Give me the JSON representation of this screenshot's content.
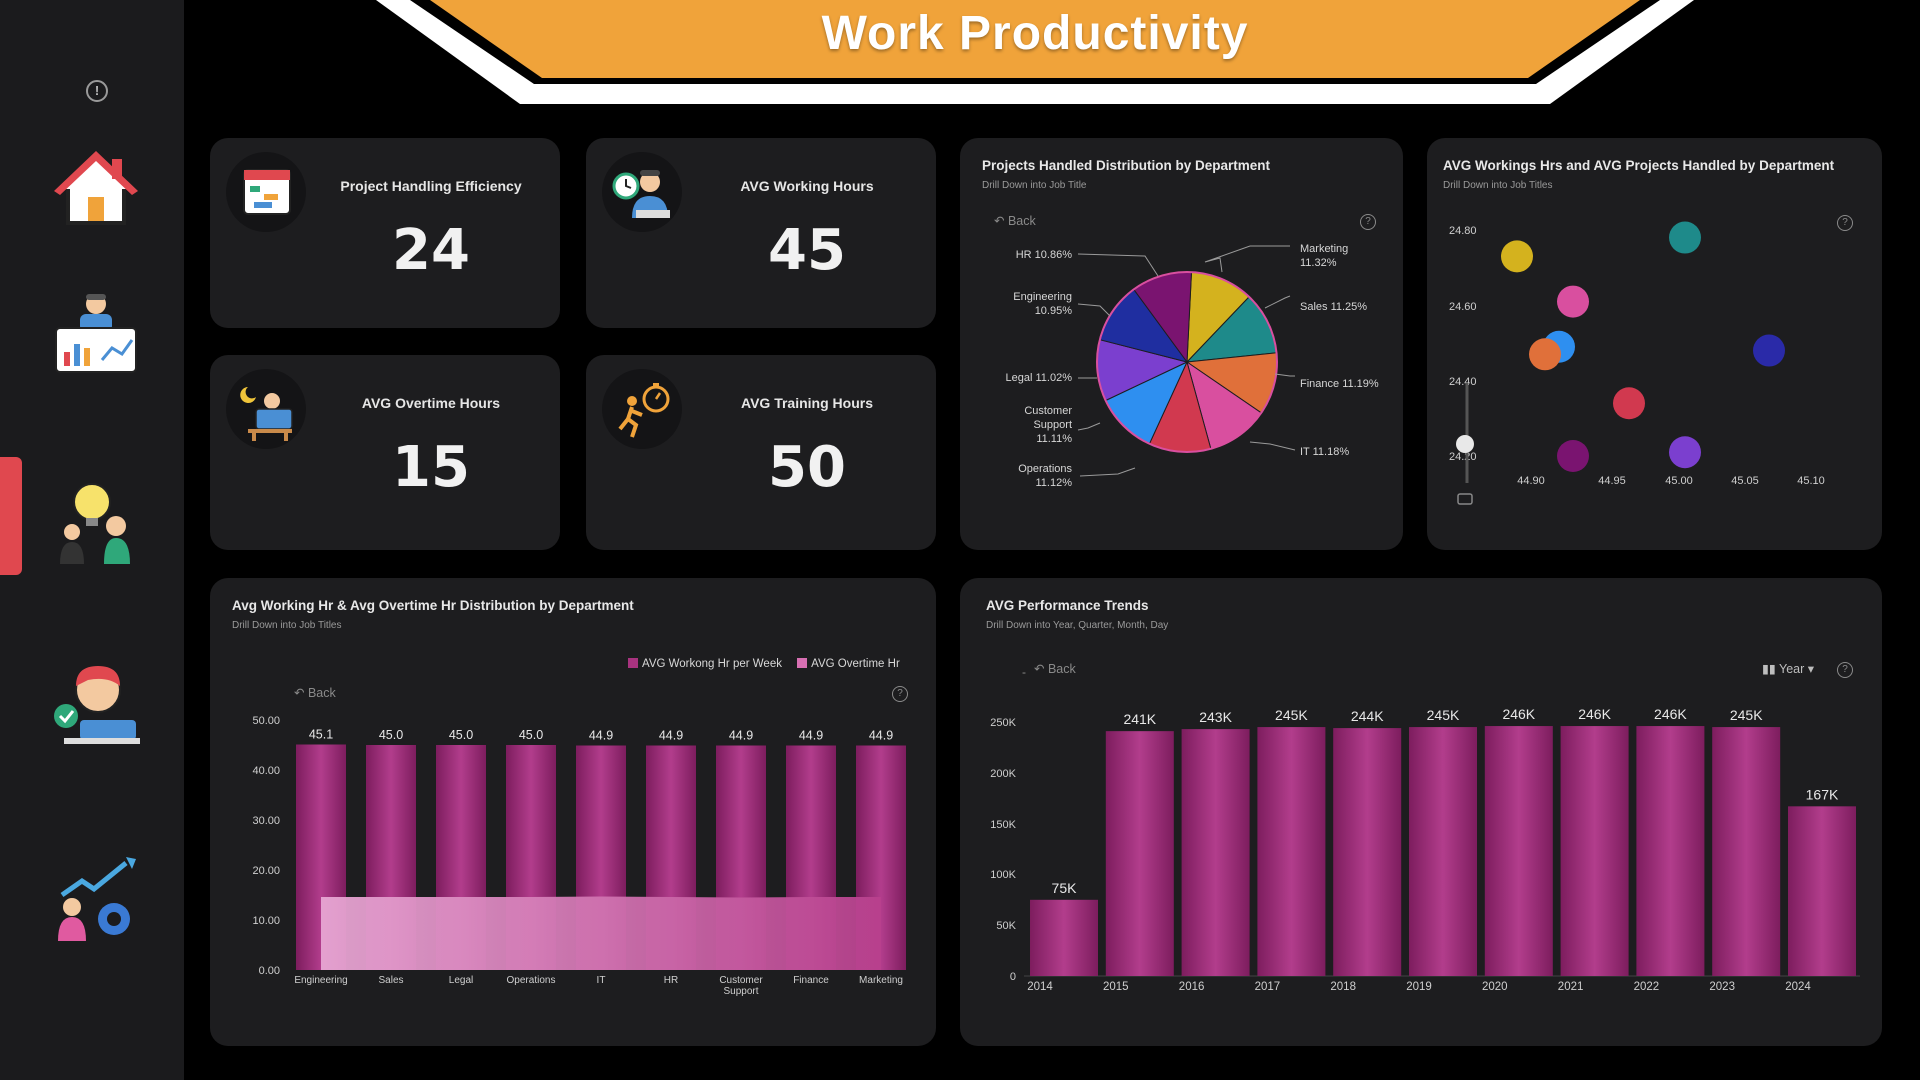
{
  "title": "Work Productivity",
  "colors": {
    "banner": "#f0a33a",
    "card": "#1d1d1f",
    "bar": "#a8337f",
    "accent": "#e0484f"
  },
  "sidebar": {
    "items": [
      {
        "icon": "home-icon"
      },
      {
        "icon": "analyst-dashboard-icon"
      },
      {
        "icon": "idea-team-icon"
      },
      {
        "icon": "employee-laptop-icon"
      },
      {
        "icon": "growth-gear-icon"
      }
    ]
  },
  "kpis": [
    {
      "label": "Project Handling Efficiency",
      "value": "24",
      "icon": "calendar-icon"
    },
    {
      "label": "AVG Working Hours",
      "value": "45",
      "icon": "clock-worker-icon"
    },
    {
      "label": "AVG Overtime Hours",
      "value": "15",
      "icon": "night-worker-icon"
    },
    {
      "label": "AVG Training Hours",
      "value": "50",
      "icon": "stopwatch-runner-icon"
    }
  ],
  "pie": {
    "title": "Projects Handled Distribution by Department",
    "subtitle": "Drill Down into Job Title",
    "back": "Back",
    "labels": [
      "Marketing",
      "11.32%",
      "Sales 11.25%",
      "Finance 11.19%",
      "IT 11.18%",
      "Operations",
      "11.12%",
      "Customer",
      "Support",
      "11.11%",
      "Legal 11.02%",
      "Engineering",
      "10.95%",
      "HR 10.86%"
    ]
  },
  "scatter": {
    "title": "AVG Workings Hrs and AVG Projects Handled by Department",
    "subtitle": "Drill Down into Job Titles",
    "yticks": [
      "24.80",
      "24.60",
      "24.40",
      "24.20"
    ],
    "xticks": [
      "44.90",
      "44.95",
      "45.00",
      "45.05",
      "45.10"
    ]
  },
  "hours": {
    "title": "Avg Working Hr & Avg Overtime Hr Distribution by Department",
    "subtitle": "Drill Down into Job Titles",
    "back": "Back",
    "legend1": "AVG Workong Hr per Week",
    "legend2": "AVG Overtime Hr",
    "yticks": [
      "50.00",
      "40.00",
      "30.00",
      "20.00",
      "10.00",
      "0.00"
    ]
  },
  "trends": {
    "title": "AVG Performance Trends",
    "subtitle": "Drill Down into Year, Quarter, Month, Day",
    "back": "Back",
    "year_label": "Year",
    "dash": "-",
    "yticks": [
      "250K",
      "200K",
      "150K",
      "100K",
      "50K",
      "0"
    ]
  },
  "chart_data": [
    {
      "type": "pie",
      "title": "Projects Handled Distribution by Department",
      "categories": [
        "Marketing",
        "Sales",
        "Finance",
        "IT",
        "Operations",
        "Customer Support",
        "Legal",
        "Engineering",
        "HR"
      ],
      "values": [
        11.32,
        11.25,
        11.19,
        11.18,
        11.12,
        11.11,
        11.02,
        10.95,
        10.86
      ],
      "colors": [
        "#d4b21e",
        "#1e8a8a",
        "#e0703a",
        "#d94f9f",
        "#d1394f",
        "#2e8ff0",
        "#7b3fcf",
        "#1f2ea0",
        "#7a1470"
      ]
    },
    {
      "type": "scatter",
      "title": "AVG Workings Hrs and AVG Projects Handled by Department",
      "xlim": [
        44.87,
        45.12
      ],
      "ylim": [
        24.15,
        24.85
      ],
      "points": [
        {
          "x": 44.89,
          "y": 24.73,
          "color": "#d4b21e"
        },
        {
          "x": 45.01,
          "y": 24.78,
          "color": "#1e8a8a"
        },
        {
          "x": 44.93,
          "y": 24.61,
          "color": "#d94f9f"
        },
        {
          "x": 44.92,
          "y": 24.49,
          "color": "#2e8ff0"
        },
        {
          "x": 44.91,
          "y": 24.47,
          "color": "#e0703a"
        },
        {
          "x": 45.07,
          "y": 24.48,
          "color": "#2a2aa8"
        },
        {
          "x": 44.97,
          "y": 24.34,
          "color": "#d1394f"
        },
        {
          "x": 44.93,
          "y": 24.2,
          "color": "#7a1470"
        },
        {
          "x": 45.01,
          "y": 24.21,
          "color": "#7b3fcf"
        }
      ]
    },
    {
      "type": "bar",
      "title": "Avg Working Hr & Avg Overtime Hr Distribution by Department",
      "categories": [
        "Engineering",
        "Sales",
        "Legal",
        "Operations",
        "IT",
        "HR",
        "Customer Support",
        "Finance",
        "Marketing"
      ],
      "ylim": [
        0,
        50
      ],
      "series": [
        {
          "name": "AVG Workong Hr per Week",
          "values": [
            45.1,
            45.0,
            45.0,
            45.0,
            44.9,
            44.9,
            44.9,
            44.9,
            44.9
          ]
        },
        {
          "name": "AVG Overtime Hr",
          "values": [
            14.6,
            14.6,
            14.6,
            14.6,
            14.7,
            14.6,
            14.5,
            14.6,
            14.6
          ]
        }
      ],
      "data_labels": [
        "45.1",
        "45.0",
        "45.0",
        "45.0",
        "44.9",
        "44.9",
        "44.9",
        "44.9",
        "44.9"
      ]
    },
    {
      "type": "bar",
      "title": "AVG Performance Trends",
      "categories": [
        "2014",
        "2015",
        "2016",
        "2017",
        "2018",
        "2019",
        "2020",
        "2021",
        "2022",
        "2023",
        "2024"
      ],
      "values": [
        75000,
        241000,
        243000,
        245000,
        244000,
        245000,
        246000,
        246000,
        246000,
        245000,
        167000
      ],
      "data_labels": [
        "75K",
        "241K",
        "243K",
        "245K",
        "244K",
        "245K",
        "246K",
        "246K",
        "246K",
        "245K",
        "167K"
      ],
      "ylim": [
        0,
        250000
      ]
    }
  ]
}
